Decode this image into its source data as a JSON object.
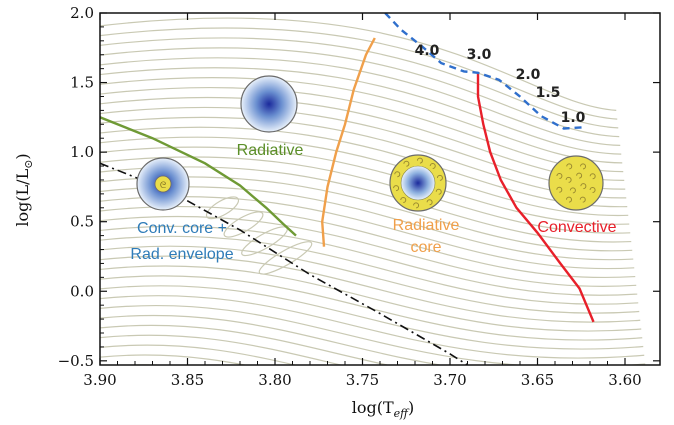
{
  "chart_data": {
    "type": "line",
    "xlabel": "log(T_eff)",
    "ylabel": "log(L/L⊙)",
    "xlim": [
      3.9,
      3.58
    ],
    "ylim": [
      -0.53,
      2.0
    ],
    "x_ticks": [
      "3.90",
      "3.85",
      "3.80",
      "3.75",
      "3.70",
      "3.65",
      "3.60"
    ],
    "y_ticks": [
      "−0.5",
      "0.0",
      "0.5",
      "1.0",
      "1.5",
      "2.0"
    ],
    "grid": false,
    "region_labels": {
      "radiative": "Radiative",
      "conv_core_line1": "Conv. core +",
      "conv_core_line2": "Rad. envelope",
      "radiative_core_line1": "Radiative",
      "radiative_core_line2": "core",
      "convective": "Convective"
    },
    "mass_labels": [
      "4.0",
      "3.0",
      "2.0",
      "1.5",
      "1.0"
    ],
    "colors": {
      "tracks": "#c9c9b3",
      "green": "#6f9a35",
      "orange": "#f0a04b",
      "red": "#e8202a",
      "blue_dashed": "#2f6fcc",
      "zams": "#111111",
      "radiative_text": "#5b8f28",
      "conv_core_text": "#2f7cb8",
      "radiative_core_text": "#f0a04b",
      "convective_text": "#e8202a"
    },
    "boundaries": {
      "green": [
        [
          3.9,
          1.25
        ],
        [
          3.87,
          1.1
        ],
        [
          3.84,
          0.92
        ],
        [
          3.82,
          0.76
        ],
        [
          3.805,
          0.6
        ],
        [
          3.795,
          0.48
        ],
        [
          3.788,
          0.4
        ]
      ],
      "orange": [
        [
          3.772,
          0.32
        ],
        [
          3.773,
          0.5
        ],
        [
          3.77,
          0.75
        ],
        [
          3.765,
          1.0
        ],
        [
          3.76,
          1.2
        ],
        [
          3.755,
          1.45
        ],
        [
          3.748,
          1.7
        ],
        [
          3.743,
          1.82
        ]
      ],
      "red": [
        [
          3.684,
          1.57
        ],
        [
          3.684,
          1.4
        ],
        [
          3.681,
          1.2
        ],
        [
          3.677,
          1.0
        ],
        [
          3.671,
          0.8
        ],
        [
          3.662,
          0.6
        ],
        [
          3.65,
          0.42
        ],
        [
          3.637,
          0.2
        ],
        [
          3.626,
          0.02
        ],
        [
          3.618,
          -0.22
        ]
      ],
      "blue_dashed": [
        [
          3.737,
          2.0
        ],
        [
          3.728,
          1.88
        ],
        [
          3.716,
          1.76
        ],
        [
          3.705,
          1.64
        ],
        [
          3.692,
          1.58
        ],
        [
          3.684,
          1.57
        ],
        [
          3.672,
          1.52
        ],
        [
          3.66,
          1.4
        ],
        [
          3.648,
          1.26
        ],
        [
          3.635,
          1.17
        ],
        [
          3.622,
          1.18
        ]
      ],
      "zams_dashdot": [
        [
          3.9,
          0.92
        ],
        [
          3.86,
          0.72
        ],
        [
          3.82,
          0.44
        ],
        [
          3.78,
          0.12
        ],
        [
          3.74,
          -0.16
        ],
        [
          3.7,
          -0.45
        ],
        [
          3.69,
          -0.53
        ]
      ]
    }
  }
}
